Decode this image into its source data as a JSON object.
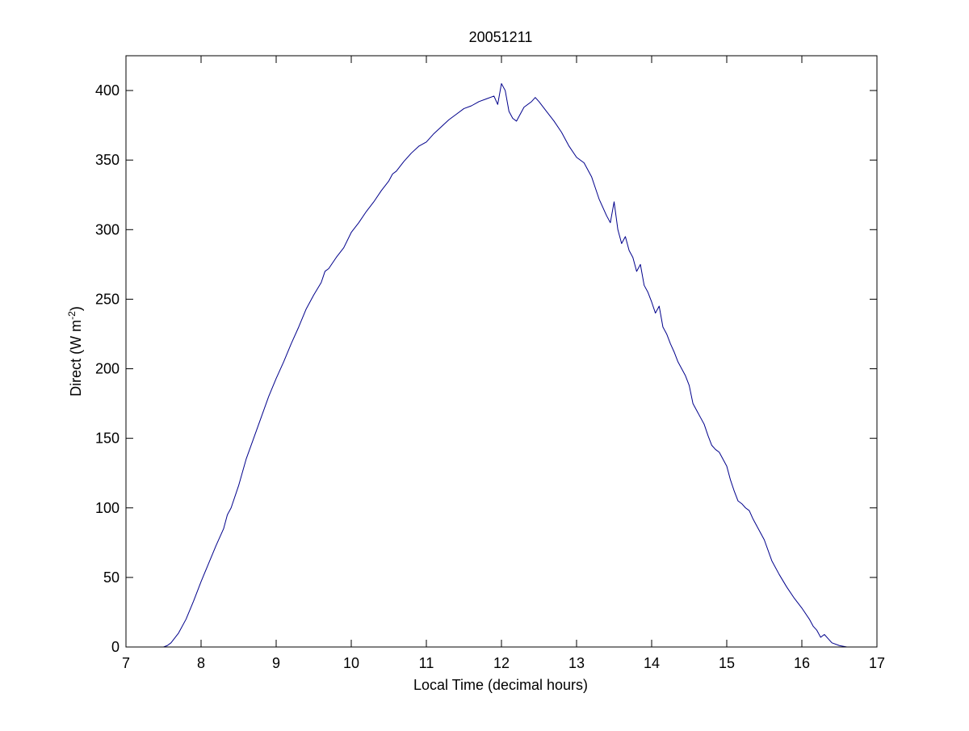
{
  "chart_data": {
    "type": "line",
    "title": "20051211",
    "xlabel": "Local Time (decimal hours)",
    "ylabel": {
      "prefix": "Direct (W m",
      "superscript": "-2",
      "suffix": ")"
    },
    "xlim": [
      7,
      17
    ],
    "ylim": [
      0,
      425
    ],
    "xticks": [
      7,
      8,
      9,
      10,
      11,
      12,
      13,
      14,
      15,
      16,
      17
    ],
    "yticks": [
      0,
      50,
      100,
      150,
      200,
      250,
      300,
      350,
      400
    ],
    "grid": false,
    "legend": "none",
    "series": [
      {
        "color": "#00008b",
        "x": [
          7.5,
          7.55,
          7.6,
          7.7,
          7.8,
          7.9,
          8.0,
          8.1,
          8.2,
          8.3,
          8.35,
          8.4,
          8.5,
          8.6,
          8.7,
          8.8,
          8.9,
          9.0,
          9.1,
          9.2,
          9.3,
          9.4,
          9.5,
          9.6,
          9.65,
          9.7,
          9.8,
          9.9,
          10.0,
          10.1,
          10.2,
          10.3,
          10.4,
          10.5,
          10.55,
          10.6,
          10.7,
          10.8,
          10.9,
          11.0,
          11.1,
          11.2,
          11.3,
          11.4,
          11.5,
          11.6,
          11.7,
          11.8,
          11.9,
          11.95,
          12.0,
          12.05,
          12.1,
          12.15,
          12.2,
          12.3,
          12.4,
          12.45,
          12.5,
          12.6,
          12.7,
          12.8,
          12.9,
          13.0,
          13.1,
          13.2,
          13.25,
          13.3,
          13.4,
          13.45,
          13.5,
          13.55,
          13.6,
          13.65,
          13.7,
          13.75,
          13.8,
          13.85,
          13.9,
          13.95,
          14.0,
          14.05,
          14.1,
          14.15,
          14.2,
          14.25,
          14.3,
          14.35,
          14.4,
          14.45,
          14.5,
          14.55,
          14.6,
          14.65,
          14.7,
          14.75,
          14.8,
          14.85,
          14.9,
          14.95,
          15.0,
          15.05,
          15.1,
          15.15,
          15.2,
          15.25,
          15.3,
          15.35,
          15.4,
          15.5,
          15.6,
          15.7,
          15.8,
          15.9,
          16.0,
          16.1,
          16.15,
          16.2,
          16.25,
          16.3,
          16.35,
          16.4,
          16.5,
          16.6,
          16.7
        ],
        "y": [
          0,
          1,
          3,
          10,
          20,
          33,
          47,
          60,
          73,
          85,
          95,
          100,
          116,
          135,
          150,
          165,
          180,
          193,
          205,
          218,
          230,
          243,
          253,
          262,
          270,
          272,
          280,
          287,
          298,
          305,
          313,
          320,
          328,
          335,
          340,
          342,
          349,
          355,
          360,
          363,
          369,
          374,
          379,
          383,
          387,
          389,
          392,
          394,
          396,
          390,
          405,
          400,
          385,
          380,
          378,
          388,
          392,
          395,
          392,
          385,
          378,
          370,
          360,
          352,
          348,
          338,
          330,
          322,
          310,
          305,
          320,
          300,
          290,
          295,
          285,
          280,
          270,
          275,
          260,
          255,
          248,
          240,
          245,
          230,
          225,
          218,
          212,
          205,
          200,
          195,
          188,
          175,
          170,
          165,
          160,
          152,
          145,
          142,
          140,
          135,
          130,
          120,
          112,
          105,
          103,
          100,
          98,
          92,
          87,
          77,
          62,
          52,
          43,
          35,
          28,
          20,
          15,
          12,
          7,
          9,
          6,
          3,
          1,
          0,
          0
        ]
      }
    ]
  }
}
